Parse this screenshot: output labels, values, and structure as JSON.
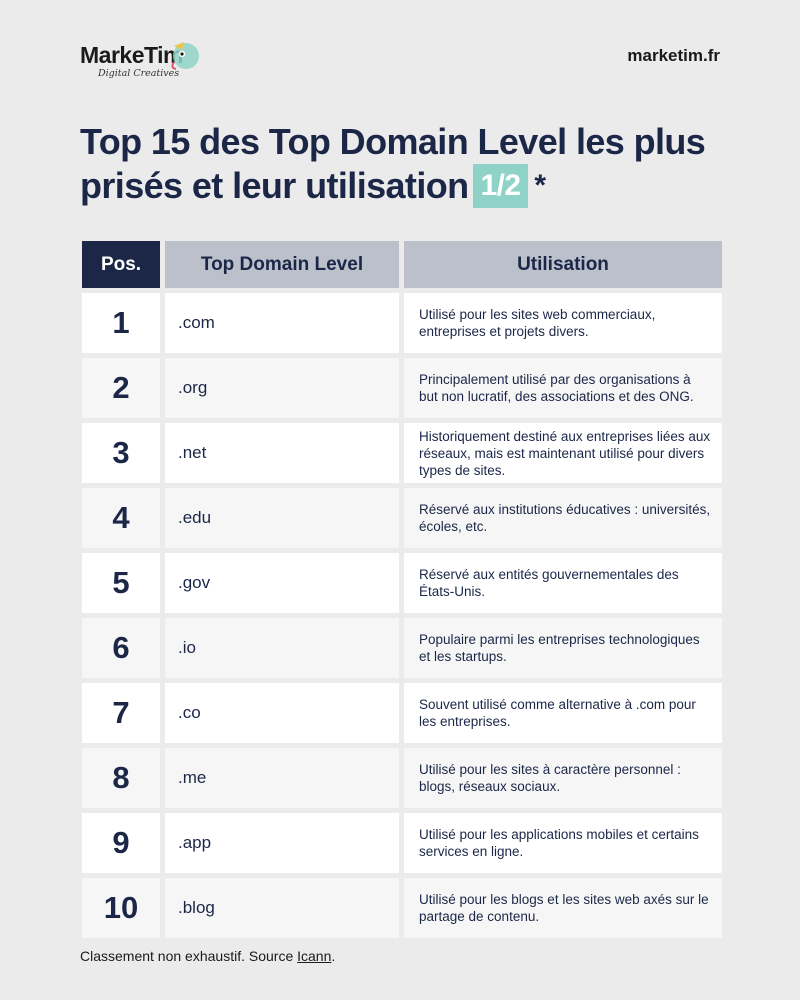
{
  "brand": {
    "name": "MarkeTim",
    "tagline": "Digital Creatives",
    "site": "marketim.fr"
  },
  "title": {
    "text": "Top 15 des Top Domain Level les plus prisés et leur utilisation",
    "badge": "1/2",
    "asterisk": "*"
  },
  "table": {
    "headers": [
      "Pos.",
      "Top Domain Level",
      "Utilisation"
    ],
    "rows": [
      {
        "pos": "1",
        "domain": ".com",
        "usage": "Utilisé pour les sites web commerciaux, entreprises et projets divers."
      },
      {
        "pos": "2",
        "domain": ".org",
        "usage": "Principalement utilisé par des organisations à but non lucratif, des associations et des ONG."
      },
      {
        "pos": "3",
        "domain": ".net",
        "usage": "Historiquement destiné aux entreprises liées aux réseaux, mais est maintenant utilisé pour divers types de sites."
      },
      {
        "pos": "4",
        "domain": ".edu",
        "usage": "Réservé aux institutions éducatives : universités, écoles, etc."
      },
      {
        "pos": "5",
        "domain": ".gov",
        "usage": "Réservé aux entités gouvernementales des États-Unis."
      },
      {
        "pos": "6",
        "domain": ".io",
        "usage": "Populaire parmi les entreprises technologiques et les startups."
      },
      {
        "pos": "7",
        "domain": ".co",
        "usage": "Souvent utilisé comme alternative à .com pour les entreprises."
      },
      {
        "pos": "8",
        "domain": ".me",
        "usage": "Utilisé pour les sites à caractère personnel : blogs, réseaux sociaux."
      },
      {
        "pos": "9",
        "domain": ".app",
        "usage": "Utilisé pour les applications mobiles et certains services en ligne."
      },
      {
        "pos": "10",
        "domain": ".blog",
        "usage": "Utilisé pour les blogs et les sites web axés sur le partage de contenu."
      }
    ]
  },
  "footer": {
    "text": "Classement non exhaustif. Source ",
    "link": "Icann",
    "end": "."
  },
  "colors": {
    "navy": "#1c2748",
    "teal": "#8fd3c8",
    "header_grey": "#bcc0cb",
    "background": "#ebebeb"
  }
}
